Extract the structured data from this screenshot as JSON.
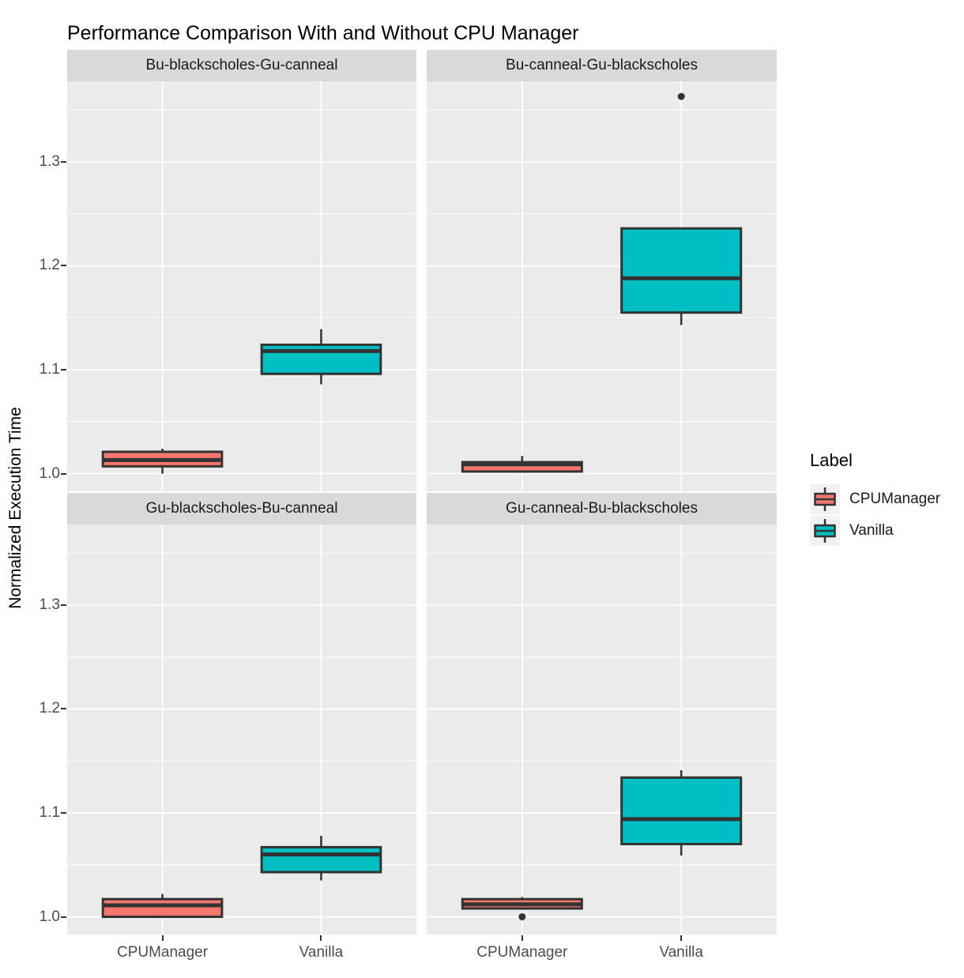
{
  "chart_data": {
    "type": "boxplot",
    "title": "Performance Comparison With and Without CPU Manager",
    "ylabel": "Normalized Execution Time",
    "xlabel": "",
    "x_categories": [
      "CPUManager",
      "Vanilla"
    ],
    "y_ticks": [
      1.0,
      1.1,
      1.2,
      1.3
    ],
    "y_minor_ticks": [
      1.05,
      1.15,
      1.25,
      1.35
    ],
    "ylim": [
      0.983,
      1.378
    ],
    "grid": "white major and minor horizontal lines plus white vertical lines at category centers on gray panel",
    "facet_layout": "2x2",
    "legend": {
      "title": "Label",
      "position": "right",
      "entries": [
        {
          "label": "CPUManager",
          "color": "#F8766D"
        },
        {
          "label": "Vanilla",
          "color": "#00BFC4"
        }
      ]
    },
    "facets": [
      {
        "label": "Bu-blackscholes-Gu-canneal",
        "boxes": [
          {
            "group": "CPUManager",
            "whisker_low": 1.0,
            "q1": 1.007,
            "median": 1.013,
            "q3": 1.021,
            "whisker_high": 1.024,
            "outliers": []
          },
          {
            "group": "Vanilla",
            "whisker_low": 1.086,
            "q1": 1.096,
            "median": 1.118,
            "q3": 1.124,
            "whisker_high": 1.139,
            "outliers": []
          }
        ]
      },
      {
        "label": "Bu-canneal-Gu-blackscholes",
        "boxes": [
          {
            "group": "CPUManager",
            "whisker_low": 1.001,
            "q1": 1.002,
            "median": 1.009,
            "q3": 1.011,
            "whisker_high": 1.017,
            "outliers": []
          },
          {
            "group": "Vanilla",
            "whisker_low": 1.143,
            "q1": 1.155,
            "median": 1.188,
            "q3": 1.236,
            "whisker_high": 1.236,
            "outliers": [
              1.363
            ]
          }
        ]
      },
      {
        "label": "Gu-blackscholes-Bu-canneal",
        "boxes": [
          {
            "group": "CPUManager",
            "whisker_low": 1.0,
            "q1": 1.0,
            "median": 1.011,
            "q3": 1.017,
            "whisker_high": 1.022,
            "outliers": []
          },
          {
            "group": "Vanilla",
            "whisker_low": 1.035,
            "q1": 1.043,
            "median": 1.06,
            "q3": 1.067,
            "whisker_high": 1.078,
            "outliers": []
          }
        ]
      },
      {
        "label": "Gu-canneal-Bu-blackscholes",
        "boxes": [
          {
            "group": "CPUManager",
            "whisker_low": 1.008,
            "q1": 1.008,
            "median": 1.012,
            "q3": 1.017,
            "whisker_high": 1.019,
            "outliers": [
              1.0
            ]
          },
          {
            "group": "Vanilla",
            "whisker_low": 1.059,
            "q1": 1.07,
            "median": 1.094,
            "q3": 1.134,
            "whisker_high": 1.141,
            "outliers": []
          }
        ]
      }
    ]
  },
  "colors": {
    "background": "#FFFFFF",
    "panel_background": "#EBEBEB",
    "strip_background": "#D9D9D9",
    "gridline": "#FFFFFF",
    "box_stroke": "#333333",
    "outlier": "#333333",
    "axis_text": "#4D4D4D",
    "title_text": "#000000"
  }
}
